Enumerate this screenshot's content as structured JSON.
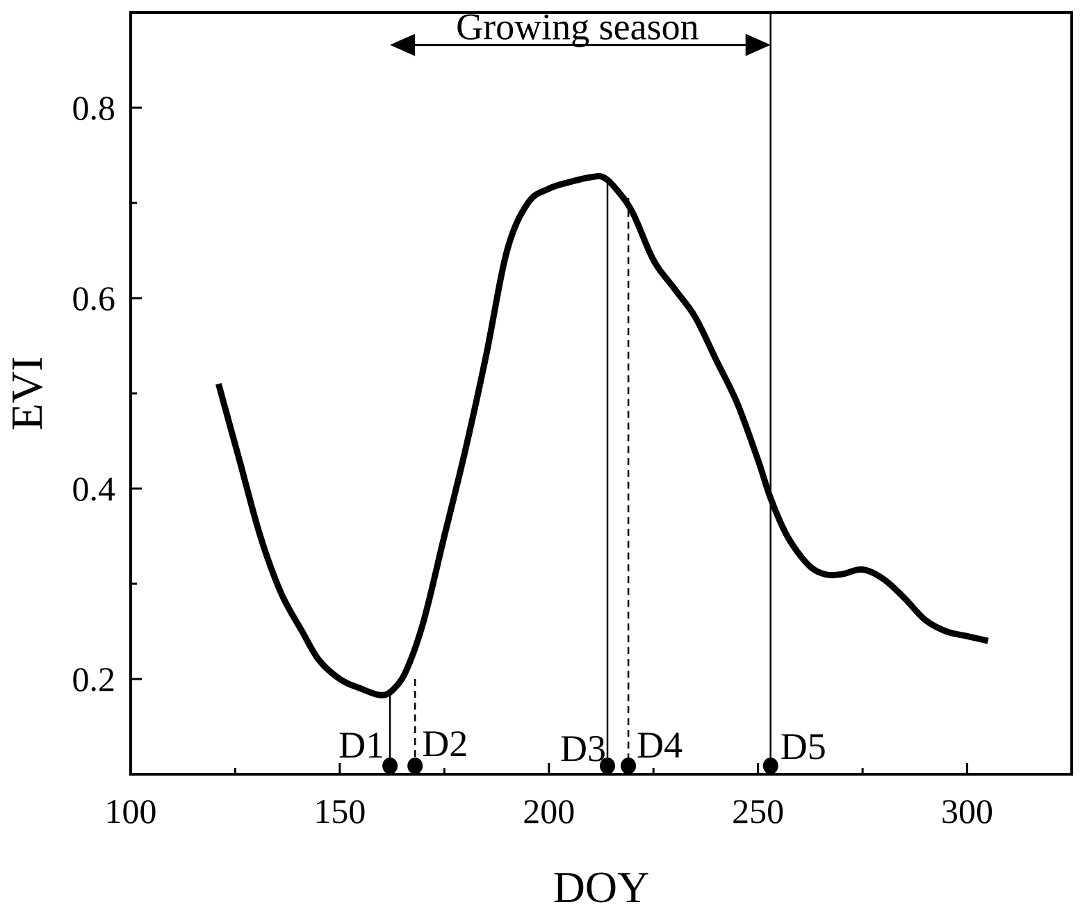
{
  "chart_data": {
    "type": "line",
    "title": "",
    "xlabel": "DOY",
    "ylabel": "EVI",
    "xlim": [
      100,
      325
    ],
    "ylim": [
      0.1,
      0.9
    ],
    "xticks": [
      100,
      150,
      200,
      250,
      300
    ],
    "xtick_labels": [
      "100",
      "150",
      "200",
      "250",
      "300"
    ],
    "xminor": [
      125,
      175,
      225,
      275
    ],
    "yticks": [
      0.2,
      0.4,
      0.6,
      0.8
    ],
    "ytick_labels": [
      "0.2",
      "0.4",
      "0.6",
      "0.8"
    ],
    "yminor": [
      0.3,
      0.5,
      0.7
    ],
    "grid": false,
    "series": [
      {
        "name": "EVI",
        "x": [
          121,
          126,
          131,
          136,
          141,
          145,
          150,
          155,
          160,
          163,
          166,
          170,
          175,
          180,
          185,
          190,
          195,
          200,
          205,
          210,
          213,
          216,
          220,
          225,
          230,
          235,
          240,
          245,
          250,
          253,
          257,
          262,
          266,
          270,
          275,
          280,
          285,
          290,
          295,
          300,
          305
        ],
        "y": [
          0.51,
          0.43,
          0.35,
          0.29,
          0.25,
          0.22,
          0.2,
          0.19,
          0.183,
          0.19,
          0.21,
          0.26,
          0.35,
          0.44,
          0.54,
          0.65,
          0.7,
          0.715,
          0.722,
          0.727,
          0.727,
          0.715,
          0.69,
          0.64,
          0.61,
          0.58,
          0.535,
          0.49,
          0.43,
          0.39,
          0.35,
          0.32,
          0.31,
          0.31,
          0.315,
          0.305,
          0.285,
          0.262,
          0.25,
          0.245,
          0.24
        ]
      }
    ],
    "markers": [
      {
        "label": "D1",
        "x": 162,
        "line_to": 0.183,
        "style": "solid"
      },
      {
        "label": "D2",
        "x": 168,
        "line_to": 0.2,
        "style": "dashed"
      },
      {
        "label": "D3",
        "x": 214,
        "line_to": 0.727,
        "style": "solid"
      },
      {
        "label": "D4",
        "x": 219,
        "line_to": 0.705,
        "style": "dashed"
      },
      {
        "label": "D5",
        "x": 253,
        "line_to": 0.9,
        "style": "solid"
      }
    ],
    "annotation": {
      "text": "Growing season",
      "from_x": 162,
      "to_x": 253,
      "y": 0.866
    }
  }
}
